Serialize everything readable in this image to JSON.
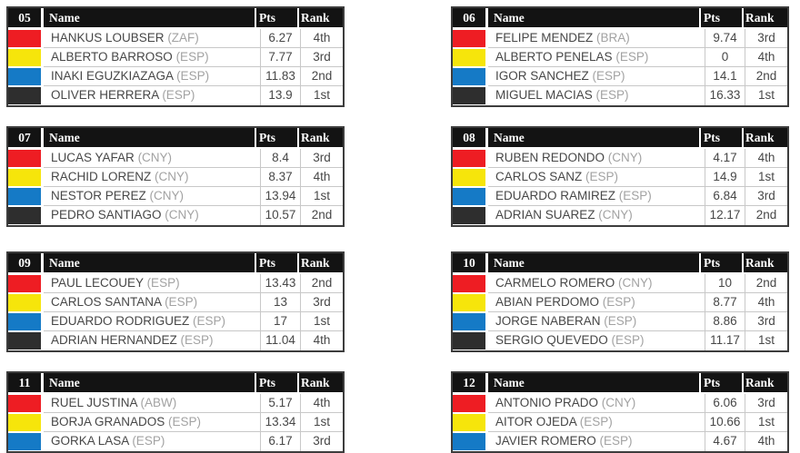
{
  "columns": {
    "name": "Name",
    "pts": "Pts",
    "rank": "Rank"
  },
  "swatch_colors": {
    "red": "#ee1d23",
    "yellow": "#f6e50b",
    "blue": "#157ac6",
    "black": "#2e2e2e"
  },
  "header_bg": "#131313",
  "heats": [
    {
      "number": "05",
      "rows": [
        {
          "color": "red",
          "name": "HANKUS LOUBSER",
          "country": "(ZAF)",
          "pts": "6.27",
          "rank": "4th"
        },
        {
          "color": "yellow",
          "name": "ALBERTO BARROSO",
          "country": "(ESP)",
          "pts": "7.77",
          "rank": "3rd"
        },
        {
          "color": "blue",
          "name": "INAKI EGUZKIAZAGA",
          "country": "(ESP)",
          "pts": "11.83",
          "rank": "2nd"
        },
        {
          "color": "black",
          "name": "OLIVER HERRERA",
          "country": "(ESP)",
          "pts": "13.9",
          "rank": "1st"
        }
      ]
    },
    {
      "number": "06",
      "rows": [
        {
          "color": "red",
          "name": "FELIPE MENDEZ",
          "country": "(BRA)",
          "pts": "9.74",
          "rank": "3rd"
        },
        {
          "color": "yellow",
          "name": "ALBERTO PENELAS",
          "country": "(ESP)",
          "pts": "0",
          "rank": "4th"
        },
        {
          "color": "blue",
          "name": "IGOR SANCHEZ",
          "country": "(ESP)",
          "pts": "14.1",
          "rank": "2nd"
        },
        {
          "color": "black",
          "name": "MIGUEL MACIAS",
          "country": "(ESP)",
          "pts": "16.33",
          "rank": "1st"
        }
      ]
    },
    {
      "number": "07",
      "rows": [
        {
          "color": "red",
          "name": "LUCAS YAFAR",
          "country": "(CNY)",
          "pts": "8.4",
          "rank": "3rd"
        },
        {
          "color": "yellow",
          "name": "RACHID LORENZ",
          "country": "(CNY)",
          "pts": "8.37",
          "rank": "4th"
        },
        {
          "color": "blue",
          "name": "NESTOR PEREZ",
          "country": "(CNY)",
          "pts": "13.94",
          "rank": "1st"
        },
        {
          "color": "black",
          "name": "PEDRO SANTIAGO",
          "country": "(CNY)",
          "pts": "10.57",
          "rank": "2nd"
        }
      ]
    },
    {
      "number": "08",
      "rows": [
        {
          "color": "red",
          "name": "RUBEN REDONDO",
          "country": "(CNY)",
          "pts": "4.17",
          "rank": "4th"
        },
        {
          "color": "yellow",
          "name": "CARLOS SANZ",
          "country": "(ESP)",
          "pts": "14.9",
          "rank": "1st"
        },
        {
          "color": "blue",
          "name": "EDUARDO RAMIREZ",
          "country": "(ESP)",
          "pts": "6.84",
          "rank": "3rd"
        },
        {
          "color": "black",
          "name": "ADRIAN SUAREZ",
          "country": "(CNY)",
          "pts": "12.17",
          "rank": "2nd"
        }
      ]
    },
    {
      "number": "09",
      "rows": [
        {
          "color": "red",
          "name": "PAUL LECOUEY",
          "country": "(ESP)",
          "pts": "13.43",
          "rank": "2nd"
        },
        {
          "color": "yellow",
          "name": "CARLOS SANTANA",
          "country": "(ESP)",
          "pts": "13",
          "rank": "3rd"
        },
        {
          "color": "blue",
          "name": "EDUARDO RODRIGUEZ",
          "country": "(ESP)",
          "pts": "17",
          "rank": "1st"
        },
        {
          "color": "black",
          "name": "ADRIAN HERNANDEZ",
          "country": "(ESP)",
          "pts": "11.04",
          "rank": "4th"
        }
      ]
    },
    {
      "number": "10",
      "rows": [
        {
          "color": "red",
          "name": "CARMELO ROMERO",
          "country": "(CNY)",
          "pts": "10",
          "rank": "2nd"
        },
        {
          "color": "yellow",
          "name": "ABIAN PERDOMO",
          "country": "(ESP)",
          "pts": "8.77",
          "rank": "4th"
        },
        {
          "color": "blue",
          "name": "JORGE NABERAN",
          "country": "(ESP)",
          "pts": "8.86",
          "rank": "3rd"
        },
        {
          "color": "black",
          "name": "SERGIO QUEVEDO",
          "country": "(ESP)",
          "pts": "11.17",
          "rank": "1st"
        }
      ]
    },
    {
      "number": "11",
      "rows": [
        {
          "color": "red",
          "name": "RUEL JUSTINA",
          "country": "(ABW)",
          "pts": "5.17",
          "rank": "4th"
        },
        {
          "color": "yellow",
          "name": "BORJA GRANADOS",
          "country": "(ESP)",
          "pts": "13.34",
          "rank": "1st"
        },
        {
          "color": "blue",
          "name": "GORKA LASA",
          "country": "(ESP)",
          "pts": "6.17",
          "rank": "3rd"
        }
      ]
    },
    {
      "number": "12",
      "rows": [
        {
          "color": "red",
          "name": "ANTONIO PRADO",
          "country": "(CNY)",
          "pts": "6.06",
          "rank": "3rd"
        },
        {
          "color": "yellow",
          "name": "AITOR OJEDA",
          "country": "(ESP)",
          "pts": "10.66",
          "rank": "1st"
        },
        {
          "color": "blue",
          "name": "JAVIER ROMERO",
          "country": "(ESP)",
          "pts": "4.67",
          "rank": "4th"
        }
      ]
    }
  ]
}
